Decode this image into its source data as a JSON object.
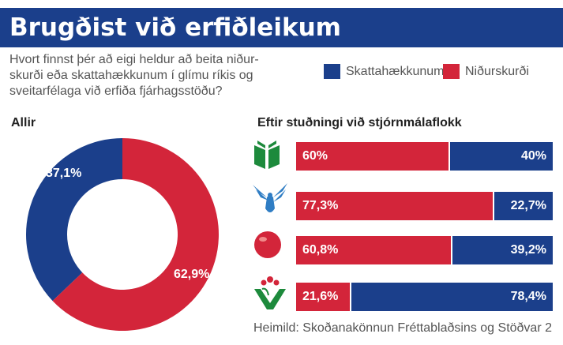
{
  "title": "Brugðist við erfiðleikum",
  "question": "Hvort finnst þér að eigi heldur að beita niður-skurði eða skattahækkunum í glímu ríkis og sveitarfélaga við erfiða fjárhagsstöðu?",
  "question_lines": [
    "Hvort finnst þér að eigi heldur að beita niður-",
    "skurði eða skattahækkunum í glímu ríkis og",
    "sveitarfélaga við erfiða fjárhagsstöðu?"
  ],
  "legend": {
    "blue": {
      "label": "Skattahækkunum",
      "color": "#1b3f8b"
    },
    "red": {
      "label": "Niðurskurði",
      "color": "#d3253a"
    }
  },
  "source": "Heimild: Skoðanakönnun Fréttablaðsins og Stöðvar 2",
  "chart_data": [
    {
      "type": "pie",
      "title": "Allir",
      "donut": true,
      "slices": [
        {
          "name": "Skattahækkunum",
          "value": 37.1,
          "label": "37,1%",
          "color": "#1b3f8b"
        },
        {
          "name": "Niðurskurði",
          "value": 62.9,
          "label": "62,9%",
          "color": "#d3253a"
        }
      ]
    },
    {
      "type": "bar",
      "stacked": true,
      "orientation": "horizontal",
      "title": "Eftir stuðningi við stjórnmálaflokk",
      "categories": [
        "party-1",
        "party-2",
        "party-3",
        "party-4"
      ],
      "category_icons": [
        "green-book-logo-icon",
        "blue-falcon-logo-icon",
        "red-ball-logo-icon",
        "green-v-rose-logo-icon"
      ],
      "series": [
        {
          "name": "Niðurskurði",
          "color": "#d3253a",
          "values": [
            60,
            77.3,
            60.8,
            21.6
          ],
          "labels": [
            "60%",
            "77,3%",
            "60,8%",
            "21,6%"
          ]
        },
        {
          "name": "Skattahækkunum",
          "color": "#1b3f8b",
          "values": [
            40,
            22.7,
            39.2,
            78.4
          ],
          "labels": [
            "40%",
            "22,7%",
            "39,2%",
            "78,4%"
          ]
        }
      ]
    }
  ]
}
